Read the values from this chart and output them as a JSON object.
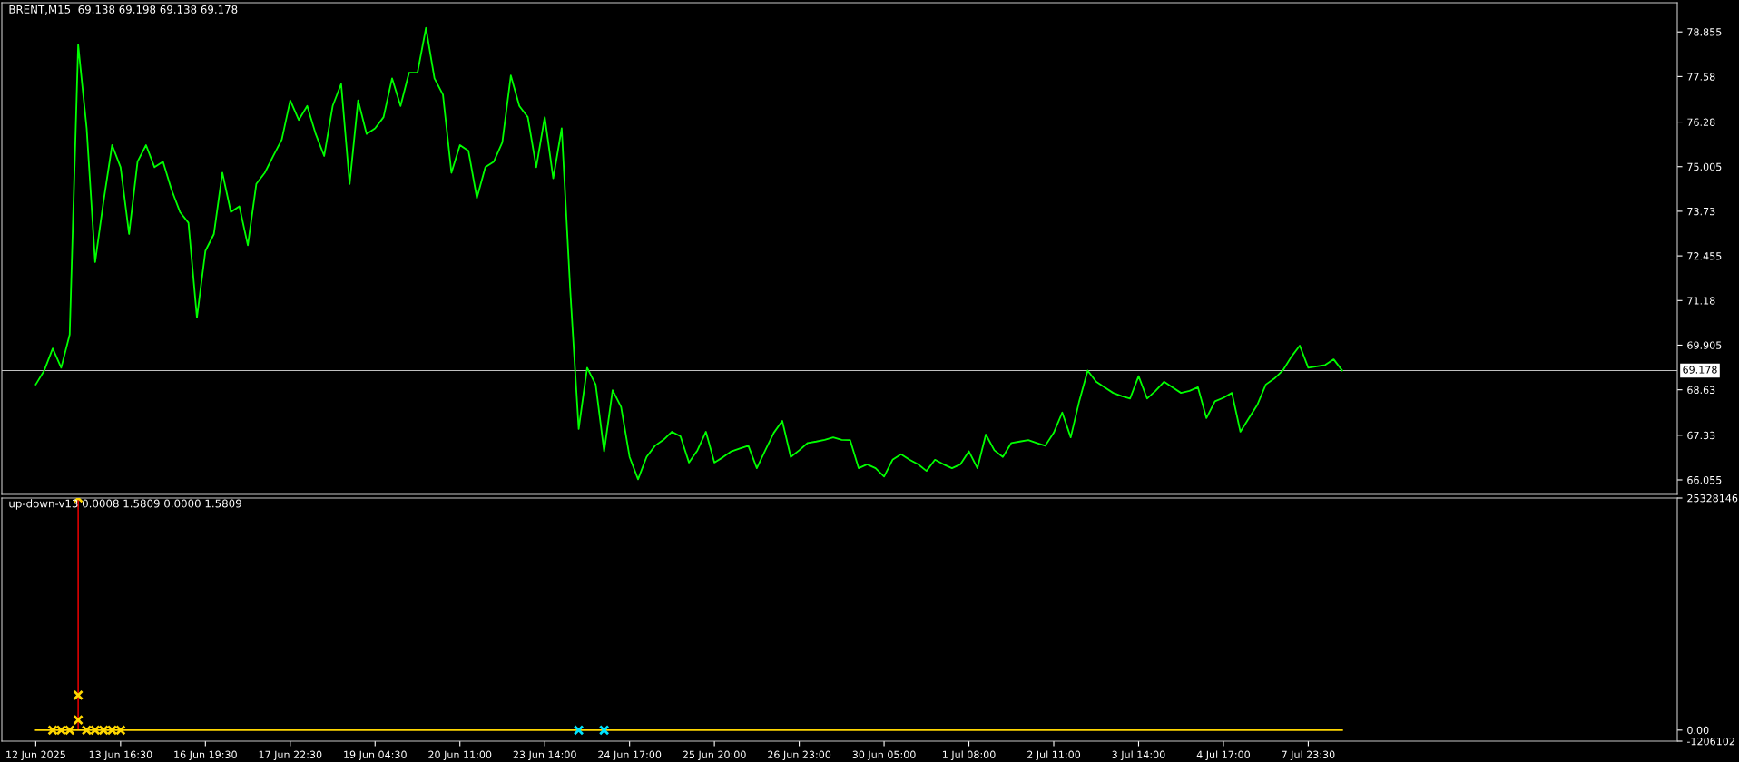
{
  "chart_data": [
    {
      "type": "line",
      "title": "BRENT,M15  69.138 69.198 69.138 69.178",
      "color": "#00ff00",
      "categories": [
        null,
        null,
        null,
        null,
        null,
        null,
        null,
        null,
        null,
        null,
        null,
        null,
        null,
        null,
        null,
        null,
        null,
        null,
        null,
        null,
        null,
        null,
        null,
        null,
        null,
        null,
        null,
        null,
        null,
        null,
        null,
        null,
        null,
        null,
        null,
        null,
        null,
        null,
        null,
        null,
        null,
        null,
        null,
        null,
        null,
        null,
        null,
        null,
        null,
        null,
        null,
        null,
        null,
        null,
        null,
        null,
        null,
        null,
        null,
        null,
        null,
        null,
        null,
        null,
        null,
        null,
        null,
        null,
        null,
        null,
        null,
        null,
        null,
        null,
        null,
        null,
        null,
        null,
        null,
        null,
        null,
        null,
        null,
        null,
        null,
        null,
        null,
        null,
        null,
        null,
        null,
        null,
        null,
        null,
        null,
        null,
        null,
        null,
        null,
        null,
        null,
        null,
        null,
        null,
        null,
        null,
        null,
        null,
        null,
        null,
        null,
        null,
        null,
        null,
        null,
        null,
        null,
        null,
        null,
        null,
        null,
        null,
        null,
        null,
        null,
        null,
        null,
        null,
        null,
        null,
        null,
        null,
        null,
        null,
        null,
        null,
        null,
        null,
        null,
        null,
        null,
        null,
        null,
        null,
        null,
        null,
        null,
        null,
        null,
        null,
        null,
        null,
        null,
        null,
        null
      ],
      "values": [
        68.78,
        69.18,
        69.81,
        69.26,
        70.21,
        78.49,
        76.1,
        72.28,
        74.03,
        75.62,
        74.99,
        73.08,
        75.15,
        75.62,
        74.99,
        75.15,
        74.35,
        73.71,
        73.4,
        70.69,
        72.6,
        73.08,
        74.83,
        73.71,
        73.87,
        72.76,
        74.51,
        74.83,
        75.31,
        75.78,
        76.9,
        76.34,
        76.74,
        75.94,
        75.31,
        76.74,
        77.37,
        74.51,
        76.9,
        75.94,
        76.1,
        76.42,
        77.53,
        76.74,
        77.69,
        77.69,
        78.97,
        77.53,
        77.06,
        74.83,
        75.62,
        75.46,
        74.11,
        74.99,
        75.15,
        75.7,
        77.61,
        76.74,
        76.42,
        74.99,
        76.42,
        74.67,
        76.1,
        71.49,
        67.51,
        69.26,
        68.78,
        66.87,
        68.62,
        68.14,
        66.71,
        66.07,
        66.71,
        67.03,
        67.2,
        67.43,
        67.3,
        66.55,
        66.9,
        67.43,
        66.55,
        66.7,
        66.87,
        66.95,
        67.03,
        66.39,
        66.9,
        67.4,
        67.74,
        66.71,
        66.9,
        67.11,
        67.15,
        67.2,
        67.27,
        67.2,
        67.19,
        66.39,
        66.5,
        66.39,
        66.15,
        66.63,
        66.79,
        66.63,
        66.5,
        66.31,
        66.63,
        66.5,
        66.39,
        66.5,
        66.87,
        66.39,
        67.35,
        66.9,
        66.71,
        67.11,
        67.15,
        67.19,
        67.11,
        67.03,
        67.4,
        67.98,
        67.27,
        68.3,
        69.18,
        68.86,
        68.7,
        68.54,
        68.45,
        68.38,
        69.02,
        68.38,
        68.6,
        68.86,
        68.7,
        68.54,
        68.6,
        68.7,
        67.82,
        68.3,
        68.4,
        68.54,
        67.43,
        67.82,
        68.2,
        68.78,
        68.95,
        69.18,
        69.57,
        69.89,
        69.26,
        69.3,
        69.34,
        69.5,
        69.18
      ],
      "ylim": [
        65.64,
        79.69
      ],
      "yticks": [
        66.055,
        67.33,
        68.63,
        69.905,
        71.18,
        72.455,
        73.73,
        75.005,
        76.28,
        77.58,
        78.855
      ],
      "ref_lines": [
        {
          "axis": "y",
          "value": 69.178,
          "label": "69.178",
          "color": "#c0c0c0"
        }
      ],
      "grid": false
    },
    {
      "type": "scatter",
      "title": "up-down-v13 0.0008 1.5809 0.0000 1.5809",
      "categories": [
        "12 Jun 2025",
        null,
        null,
        null,
        null,
        null,
        null,
        null,
        null,
        null,
        "13 Jun 16:30",
        null,
        null,
        null,
        null,
        null,
        null,
        null,
        null,
        null,
        "16 Jun 19:30",
        null,
        null,
        null,
        null,
        null,
        null,
        null,
        null,
        null,
        "17 Jun 22:30",
        null,
        null,
        null,
        null,
        null,
        null,
        null,
        null,
        null,
        "19 Jun 04:30",
        null,
        null,
        null,
        null,
        null,
        null,
        null,
        null,
        null,
        "20 Jun 11:00",
        null,
        null,
        null,
        null,
        null,
        null,
        null,
        null,
        null,
        "23 Jun 14:00",
        null,
        null,
        null,
        null,
        null,
        null,
        null,
        null,
        null,
        "24 Jun 17:00",
        null,
        null,
        null,
        null,
        null,
        null,
        null,
        null,
        null,
        "25 Jun 20:00",
        null,
        null,
        null,
        null,
        null,
        null,
        null,
        null,
        null,
        "26 Jun 23:00",
        null,
        null,
        null,
        null,
        null,
        null,
        null,
        null,
        null,
        "30 Jun 05:00",
        null,
        null,
        null,
        null,
        null,
        null,
        null,
        null,
        null,
        "1 Jul 08:00",
        null,
        null,
        null,
        null,
        null,
        null,
        null,
        null,
        null,
        "2 Jul 11:00",
        null,
        null,
        null,
        null,
        null,
        null,
        null,
        null,
        null,
        "3 Jul 14:00",
        null,
        null,
        null,
        null,
        null,
        null,
        null,
        null,
        null,
        "4 Jul 17:00",
        null,
        null,
        null,
        null,
        null,
        null,
        null,
        null,
        null,
        "7 Jul 23:30",
        null,
        null,
        null,
        null
      ],
      "ylim": [
        -1206102,
        25328146
      ],
      "yticks": [
        25328146,
        {
          "value": 0,
          "label": "0.00"
        },
        -1206102
      ],
      "grid": false,
      "series": [
        {
          "type": "line",
          "color": "#ffd700",
          "values": [
            0,
            0,
            0,
            0,
            0,
            0,
            0,
            0,
            0,
            0,
            0,
            0,
            0,
            0,
            0,
            0,
            0,
            0,
            0,
            0,
            0,
            0,
            0,
            0,
            0,
            0,
            0,
            0,
            0,
            0,
            0,
            0,
            0,
            0,
            0,
            0,
            0,
            0,
            0,
            0,
            0,
            0,
            0,
            0,
            0,
            0,
            0,
            0,
            0,
            0,
            0,
            0,
            0,
            0,
            0,
            0,
            0,
            0,
            0,
            0,
            0,
            0,
            0,
            0,
            0,
            0,
            0,
            0,
            0,
            0,
            0,
            0,
            0,
            0,
            0,
            0,
            0,
            0,
            0,
            0,
            0,
            0,
            0,
            0,
            0,
            0,
            0,
            0,
            0,
            0,
            0,
            0,
            0,
            0,
            0,
            0,
            0,
            0,
            0,
            0,
            0,
            0,
            0,
            0,
            0,
            0,
            0,
            0,
            0,
            0,
            0,
            0,
            0,
            0,
            0,
            0,
            0,
            0,
            0,
            0,
            0,
            0,
            0,
            0,
            0,
            0,
            0,
            0,
            0,
            0,
            0,
            0,
            0,
            0,
            0,
            0,
            0,
            0,
            0,
            0,
            0,
            0,
            0,
            0,
            0,
            0,
            0,
            0,
            0,
            0,
            0,
            0,
            0,
            0,
            0
          ]
        },
        {
          "type": "bar",
          "color": "#ff0000",
          "values": [
            null,
            null,
            null,
            null,
            null,
            25328146,
            null,
            null,
            null,
            null,
            null,
            null,
            null,
            null,
            null,
            null,
            null,
            null,
            null,
            null,
            null,
            null,
            null,
            null,
            null,
            null,
            null,
            null,
            null,
            null,
            null,
            null,
            null,
            null,
            null,
            null,
            null,
            null,
            null,
            null,
            null,
            null,
            null,
            null,
            null,
            null,
            null,
            null,
            null,
            null,
            null,
            null,
            null,
            null,
            null,
            null,
            null,
            null,
            null,
            null,
            null,
            null,
            null,
            null,
            null,
            null,
            null,
            null,
            null,
            null,
            null,
            null,
            null,
            null,
            null,
            null,
            null,
            null,
            null,
            null,
            null,
            null,
            null,
            null,
            null,
            null,
            null,
            null,
            null,
            null,
            null,
            null,
            null,
            null,
            null,
            null,
            null,
            null,
            null,
            null,
            null,
            null,
            null,
            null,
            null,
            null,
            null,
            null,
            null,
            null,
            null,
            null,
            null,
            null,
            null,
            null,
            null,
            null,
            null,
            null,
            null,
            null,
            null,
            null,
            null,
            null,
            null,
            null,
            null,
            null,
            null,
            null,
            null,
            null,
            null,
            null,
            null,
            null,
            null,
            null,
            null,
            null,
            null,
            null,
            null,
            null,
            null,
            null,
            null,
            null,
            null,
            null,
            null,
            null,
            null
          ]
        },
        {
          "type": "scatter",
          "marker": "cross",
          "color": "#ffd700",
          "values": [
            null,
            null,
            0,
            0,
            0,
            25328146,
            0,
            0,
            0,
            0,
            0,
            null,
            null,
            null,
            null,
            null,
            null,
            null,
            null,
            null,
            null,
            null,
            null,
            null,
            null,
            null,
            null,
            null,
            null,
            null,
            null,
            null,
            null,
            null,
            null,
            null,
            null,
            null,
            null,
            null,
            null,
            null,
            null,
            null,
            null,
            null,
            null,
            null,
            null,
            null,
            null,
            null,
            null,
            null,
            null,
            null,
            null,
            null,
            null,
            null,
            null,
            null,
            null,
            null,
            null,
            null,
            null,
            null,
            null,
            null,
            null,
            null,
            null,
            null,
            null,
            null,
            null,
            null,
            null,
            null,
            null,
            null,
            null,
            null,
            null,
            null,
            null,
            null,
            null,
            null,
            null,
            null,
            null,
            null,
            null,
            null,
            null,
            null,
            null,
            null,
            null,
            null,
            null,
            null,
            null,
            null,
            null,
            null,
            null,
            null,
            null,
            null,
            null,
            null,
            null,
            null,
            null,
            null,
            null,
            null,
            null,
            null,
            null,
            null,
            null,
            null,
            null,
            null,
            null,
            null,
            null,
            null,
            null,
            null,
            null,
            null,
            null,
            null,
            null,
            null,
            null,
            null,
            null,
            null,
            null,
            null,
            null,
            null,
            null,
            null,
            null,
            null,
            null,
            null,
            null
          ]
        },
        {
          "type": "scatter",
          "marker": "cross",
          "color": "#ffd700",
          "values": [
            null,
            null,
            null,
            null,
            null,
            3800000,
            null,
            null,
            null,
            null,
            null,
            null,
            null,
            null,
            null,
            null,
            null,
            null,
            null,
            null,
            null,
            null,
            null,
            null,
            null,
            null,
            null,
            null,
            null,
            null,
            null,
            null,
            null,
            null,
            null,
            null,
            null,
            null,
            null,
            null,
            null,
            null,
            null,
            null,
            null,
            null,
            null,
            null,
            null,
            null,
            null,
            null,
            null,
            null,
            null,
            null,
            null,
            null,
            null,
            null,
            null,
            null,
            null,
            null,
            null,
            null,
            null,
            null,
            null,
            null,
            null,
            null,
            null,
            null,
            null,
            null,
            null,
            null,
            null,
            null,
            null,
            null,
            null,
            null,
            null,
            null,
            null,
            null,
            null,
            null,
            null,
            null,
            null,
            null,
            null,
            null,
            null,
            null,
            null,
            null,
            null,
            null,
            null,
            null,
            null,
            null,
            null,
            null,
            null,
            null,
            null,
            null,
            null,
            null,
            null,
            null,
            null,
            null,
            null,
            null,
            null,
            null,
            null,
            null,
            null,
            null,
            null,
            null,
            null,
            null,
            null,
            null,
            null,
            null,
            null,
            null,
            null,
            null,
            null,
            null,
            null,
            null,
            null,
            null,
            null,
            null,
            null,
            null,
            null,
            null,
            null,
            null,
            null,
            null,
            null
          ]
        },
        {
          "type": "scatter",
          "marker": "cross",
          "color": "#ffd700",
          "values": [
            null,
            null,
            null,
            null,
            null,
            1100000,
            null,
            null,
            null,
            null,
            null,
            null,
            null,
            null,
            null,
            null,
            null,
            null,
            null,
            null,
            null,
            null,
            null,
            null,
            null,
            null,
            null,
            null,
            null,
            null,
            null,
            null,
            null,
            null,
            null,
            null,
            null,
            null,
            null,
            null,
            null,
            null,
            null,
            null,
            null,
            null,
            null,
            null,
            null,
            null,
            null,
            null,
            null,
            null,
            null,
            null,
            null,
            null,
            null,
            null,
            null,
            null,
            null,
            null,
            null,
            null,
            null,
            null,
            null,
            null,
            null,
            null,
            null,
            null,
            null,
            null,
            null,
            null,
            null,
            null,
            null,
            null,
            null,
            null,
            null,
            null,
            null,
            null,
            null,
            null,
            null,
            null,
            null,
            null,
            null,
            null,
            null,
            null,
            null,
            null,
            null,
            null,
            null,
            null,
            null,
            null,
            null,
            null,
            null,
            null,
            null,
            null,
            null,
            null,
            null,
            null,
            null,
            null,
            null,
            null,
            null,
            null,
            null,
            null,
            null,
            null,
            null,
            null,
            null,
            null,
            null,
            null,
            null,
            null,
            null,
            null,
            null,
            null,
            null,
            null,
            null,
            null,
            null,
            null,
            null,
            null,
            null,
            null,
            null,
            null,
            null,
            null,
            null,
            null,
            null
          ]
        },
        {
          "type": "scatter",
          "marker": "cross",
          "color": "#00e5ff",
          "values": [
            null,
            null,
            null,
            null,
            null,
            null,
            null,
            null,
            null,
            null,
            null,
            null,
            null,
            null,
            null,
            null,
            null,
            null,
            null,
            null,
            null,
            null,
            null,
            null,
            null,
            null,
            null,
            null,
            null,
            null,
            null,
            null,
            null,
            null,
            null,
            null,
            null,
            null,
            null,
            null,
            null,
            null,
            null,
            null,
            null,
            null,
            null,
            null,
            null,
            null,
            null,
            null,
            null,
            null,
            null,
            null,
            null,
            null,
            null,
            null,
            null,
            null,
            null,
            null,
            0,
            null,
            null,
            0,
            null,
            null,
            null,
            null,
            null,
            null,
            null,
            null,
            null,
            null,
            null,
            null,
            null,
            null,
            null,
            null,
            null,
            null,
            null,
            null,
            null,
            null,
            null,
            null,
            null,
            null,
            null,
            null,
            null,
            null,
            null,
            null,
            null,
            null,
            null,
            null,
            null,
            null,
            null,
            null,
            null,
            null,
            null,
            null,
            null,
            null,
            null,
            null,
            null,
            null,
            null,
            null,
            null,
            null,
            null,
            null,
            null,
            null,
            null,
            null,
            null,
            null,
            null,
            null,
            null,
            null,
            null,
            null,
            null,
            null,
            null,
            null,
            null,
            null,
            null,
            null,
            null,
            null,
            null,
            null,
            null,
            null,
            null,
            null,
            null,
            null,
            null
          ]
        }
      ]
    }
  ]
}
